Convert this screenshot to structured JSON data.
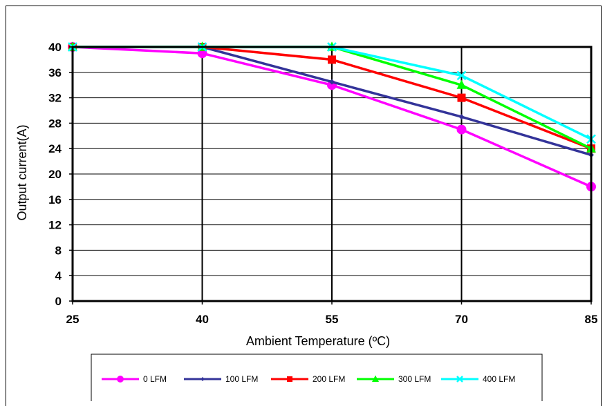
{
  "chart_data": {
    "type": "line",
    "xlabel": "Ambient Temperature (ºC)",
    "ylabel": "Output current(A)",
    "x": [
      25,
      40,
      55,
      70,
      85
    ],
    "x_ticks": [
      "25",
      "40",
      "55",
      "70",
      "85"
    ],
    "y_ticks": [
      "0",
      "4",
      "8",
      "12",
      "16",
      "20",
      "24",
      "28",
      "32",
      "36",
      "40"
    ],
    "xlim": [
      25,
      85
    ],
    "ylim": [
      0,
      40
    ],
    "grid": true,
    "legend_position": "bottom",
    "series": [
      {
        "name": "0 LFM",
        "color": "#ff00ff",
        "marker": "circle",
        "values": [
          40,
          39,
          34,
          27,
          18
        ]
      },
      {
        "name": "100 LFM",
        "color": "#333399",
        "marker": "diamond",
        "values": [
          40,
          40,
          34.5,
          29,
          23
        ]
      },
      {
        "name": "200 LFM",
        "color": "#ff0000",
        "marker": "square",
        "values": [
          40,
          40,
          38,
          32,
          24
        ]
      },
      {
        "name": "300 LFM",
        "color": "#00ff00",
        "marker": "triangle",
        "values": [
          40,
          40,
          40,
          34,
          24
        ]
      },
      {
        "name": "400 LFM",
        "color": "#00ffff",
        "marker": "cross",
        "values": [
          40,
          40,
          40,
          35.5,
          25.5
        ]
      }
    ]
  }
}
